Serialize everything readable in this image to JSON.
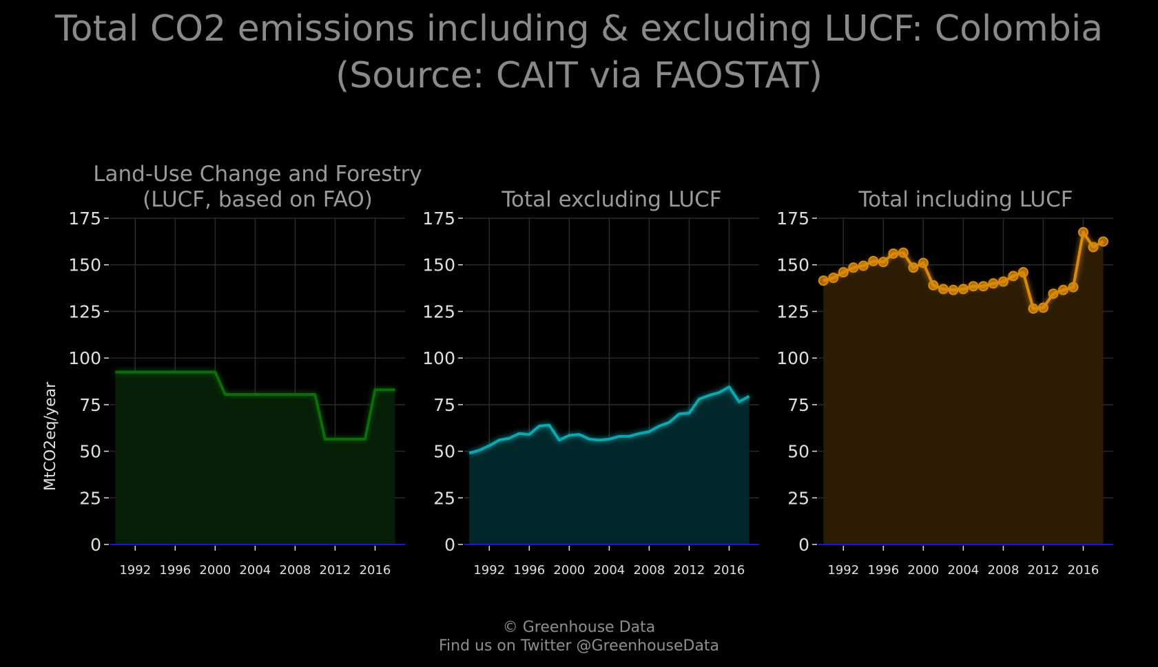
{
  "title": {
    "line1": "Total CO2 emissions including & excluding LUCF: Colombia",
    "line2": "(Source: CAIT via FAOSTAT)"
  },
  "footer": {
    "line1": "© Greenhouse Data",
    "line2": "Find us on Twitter @GreenhouseData"
  },
  "chart_data": [
    {
      "type": "area",
      "title": [
        "Land-Use Change and Forestry",
        "(LUCF, based on FAO)"
      ],
      "ylabel": "MtCO2eq/year",
      "ylim": [
        0,
        175
      ],
      "yticks": [
        0,
        25,
        50,
        75,
        100,
        125,
        150,
        175
      ],
      "xticks": [
        1992,
        1996,
        2000,
        2004,
        2008,
        2012,
        2016
      ],
      "grid": true,
      "color": "#0a6b0a",
      "fill": "#061f06",
      "markers": false,
      "x": [
        1990,
        1991,
        1992,
        1993,
        1994,
        1995,
        1996,
        1997,
        1998,
        1999,
        2000,
        2001,
        2002,
        2003,
        2004,
        2005,
        2006,
        2007,
        2008,
        2009,
        2010,
        2011,
        2012,
        2013,
        2014,
        2015,
        2016,
        2017,
        2018
      ],
      "values": [
        92.5,
        92.5,
        92.5,
        92.5,
        92.5,
        92.5,
        92.5,
        92.5,
        92.5,
        92.5,
        92.5,
        80.5,
        80.5,
        80.5,
        80.5,
        80.5,
        80.5,
        80.5,
        80.5,
        80.5,
        80.5,
        56.5,
        56.5,
        56.5,
        56.5,
        56.5,
        83,
        83,
        83
      ]
    },
    {
      "type": "area",
      "title": [
        "Total excluding LUCF"
      ],
      "ylabel": "",
      "ylim": [
        0,
        175
      ],
      "yticks": [
        0,
        25,
        50,
        75,
        100,
        125,
        150,
        175
      ],
      "xticks": [
        1992,
        1996,
        2000,
        2004,
        2008,
        2012,
        2016
      ],
      "grid": true,
      "color": "#10a7b0",
      "fill": "#02292d",
      "markers": false,
      "x": [
        1990,
        1991,
        1992,
        1993,
        1994,
        1995,
        1996,
        1997,
        1998,
        1999,
        2000,
        2001,
        2002,
        2003,
        2004,
        2005,
        2006,
        2007,
        2008,
        2009,
        2010,
        2011,
        2012,
        2013,
        2014,
        2015,
        2016,
        2017,
        2018
      ],
      "values": [
        49,
        50.5,
        53,
        56,
        57,
        59.5,
        59,
        63.5,
        64,
        56,
        58.5,
        59,
        56.5,
        56,
        56.5,
        58,
        58,
        59.5,
        60.5,
        63.5,
        65.5,
        70,
        70.5,
        78,
        80,
        81.5,
        84.5,
        76.5,
        79.5
      ]
    },
    {
      "type": "area",
      "title": [
        "Total including LUCF"
      ],
      "ylabel": "",
      "ylim": [
        0,
        175
      ],
      "yticks": [
        0,
        25,
        50,
        75,
        100,
        125,
        150,
        175
      ],
      "xticks": [
        1992,
        1996,
        2000,
        2004,
        2008,
        2012,
        2016
      ],
      "grid": true,
      "color": "#d98a0b",
      "fill": "#2e1e05",
      "markers": true,
      "x": [
        1990,
        1991,
        1992,
        1993,
        1994,
        1995,
        1996,
        1997,
        1998,
        1999,
        2000,
        2001,
        2002,
        2003,
        2004,
        2005,
        2006,
        2007,
        2008,
        2009,
        2010,
        2011,
        2012,
        2013,
        2014,
        2015,
        2016,
        2017,
        2018
      ],
      "values": [
        141.5,
        143,
        146,
        148.5,
        149.5,
        152,
        151.5,
        156,
        156.5,
        148.5,
        151,
        139,
        137,
        136.5,
        137,
        138.5,
        138.5,
        140,
        141,
        144,
        146,
        126.5,
        127,
        134.5,
        136.5,
        138,
        167.5,
        159.5,
        162.5
      ]
    }
  ]
}
